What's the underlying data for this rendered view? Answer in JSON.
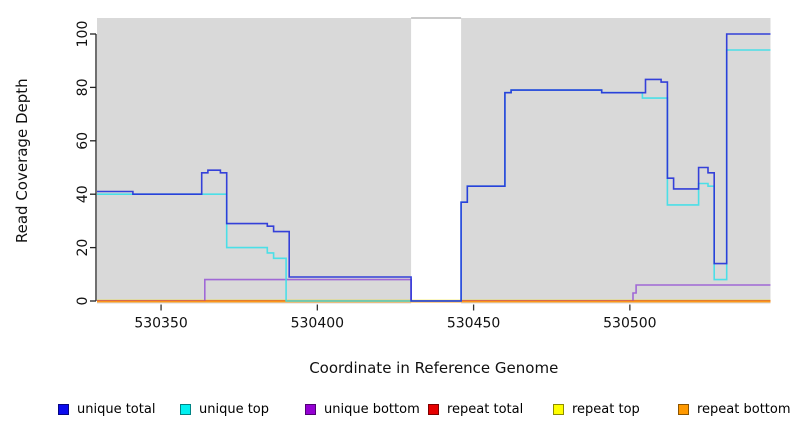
{
  "chart_data": {
    "type": "line",
    "subtype": "step-coverage",
    "title": "",
    "xlabel": "Coordinate in Reference Genome",
    "ylabel": "Read Coverage Depth",
    "xlim": [
      530329.5,
      530545
    ],
    "ylim": [
      0,
      100
    ],
    "xticks": [
      530350,
      530400,
      530450,
      530500
    ],
    "yticks": [
      0,
      20,
      40,
      60,
      80,
      100
    ],
    "grid": "off",
    "plot_background": "#d9d9d9",
    "mask_region": {
      "from": 530430,
      "to": 530446,
      "color": "#ffffff",
      "edge": "#aaaaaa"
    },
    "legend_position": "bottom",
    "legend": [
      {
        "label": "unique total",
        "color": "#0b0bee"
      },
      {
        "label": "unique top",
        "color": "#00f0f0"
      },
      {
        "label": "unique bottom",
        "color": "#9400d3"
      },
      {
        "label": "repeat total",
        "color": "#e60000"
      },
      {
        "label": "repeat top",
        "color": "#ffff00"
      },
      {
        "label": "repeat bottom",
        "color": "#ff9900"
      }
    ],
    "series": [
      {
        "name": "repeat top",
        "color": "#f0e000",
        "draw_order": 1,
        "steps": [
          [
            530329.5,
            0
          ]
        ]
      },
      {
        "name": "unique bottom",
        "color": "#9b5fd6",
        "draw_order": 2,
        "steps": [
          [
            530329.5,
            0
          ],
          [
            530364,
            8
          ],
          [
            530430,
            0
          ],
          [
            530501,
            3
          ],
          [
            530502,
            6
          ]
        ]
      },
      {
        "name": "repeat total",
        "color": "#d84747",
        "draw_order": 3,
        "steps": [
          [
            530329.5,
            0
          ]
        ]
      },
      {
        "name": "repeat bottom",
        "color": "#ff9913",
        "draw_order": 4,
        "steps": [
          [
            530329.5,
            0
          ]
        ]
      },
      {
        "name": "unique top",
        "color": "#3fdfe8",
        "draw_order": 5,
        "steps": [
          [
            530329.5,
            40
          ],
          [
            530371,
            20
          ],
          [
            530384,
            18
          ],
          [
            530386,
            16
          ],
          [
            530390,
            0
          ],
          [
            530446,
            37
          ],
          [
            530448,
            43
          ],
          [
            530460,
            78
          ],
          [
            530462,
            79
          ],
          [
            530491,
            78
          ],
          [
            530504,
            76
          ],
          [
            530512,
            36
          ],
          [
            530522,
            44
          ],
          [
            530525,
            43
          ],
          [
            530527,
            8
          ],
          [
            530531,
            94
          ]
        ]
      },
      {
        "name": "unique total",
        "color": "#2633d9",
        "draw_order": 6,
        "steps": [
          [
            530329.5,
            41
          ],
          [
            530341,
            40
          ],
          [
            530363,
            48
          ],
          [
            530365,
            49
          ],
          [
            530369,
            48
          ],
          [
            530371,
            29
          ],
          [
            530384,
            28
          ],
          [
            530386,
            26
          ],
          [
            530391,
            9
          ],
          [
            530430,
            0
          ],
          [
            530446,
            37
          ],
          [
            530448,
            43
          ],
          [
            530460,
            78
          ],
          [
            530462,
            79
          ],
          [
            530491,
            78
          ],
          [
            530505,
            83
          ],
          [
            530510,
            82
          ],
          [
            530512,
            46
          ],
          [
            530514,
            42
          ],
          [
            530522,
            50
          ],
          [
            530525,
            48
          ],
          [
            530527,
            14
          ],
          [
            530531,
            100
          ]
        ]
      }
    ]
  }
}
